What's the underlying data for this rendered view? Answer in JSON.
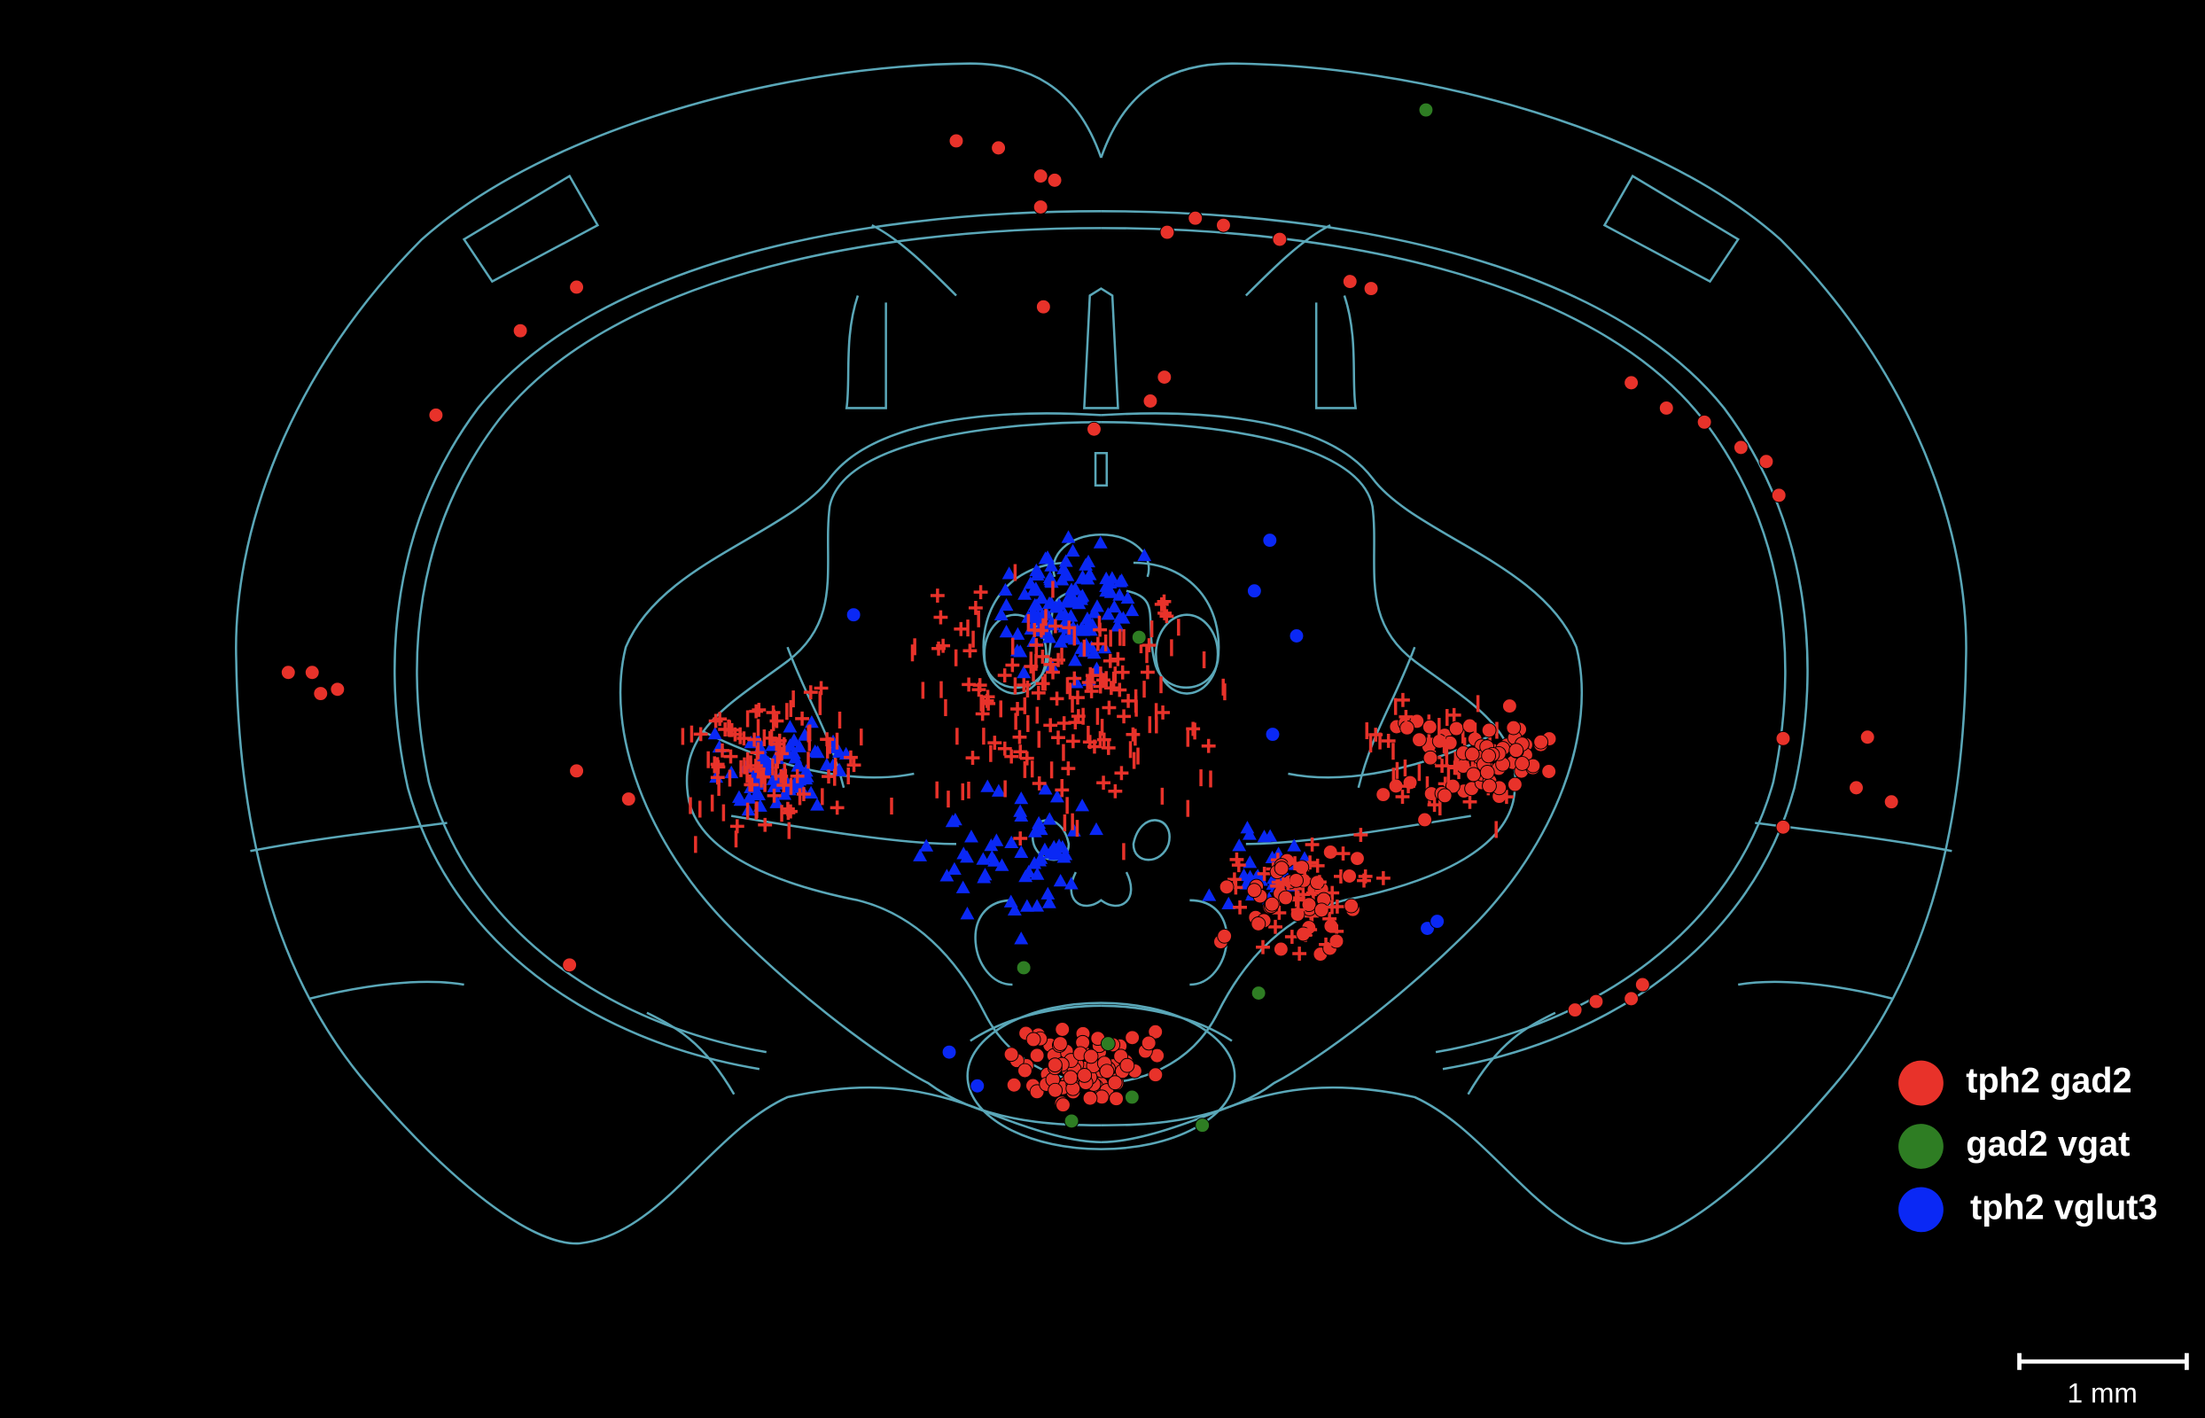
{
  "legend": {
    "items": [
      {
        "label": "tph2 gad2",
        "color": "#e8322a"
      },
      {
        "label": "gad2 vgat",
        "color": "#2e7d23"
      },
      {
        "label": "tph2 vglut3",
        "color": "#0a28f5"
      }
    ]
  },
  "scale_bar": {
    "label": "1 mm"
  }
}
